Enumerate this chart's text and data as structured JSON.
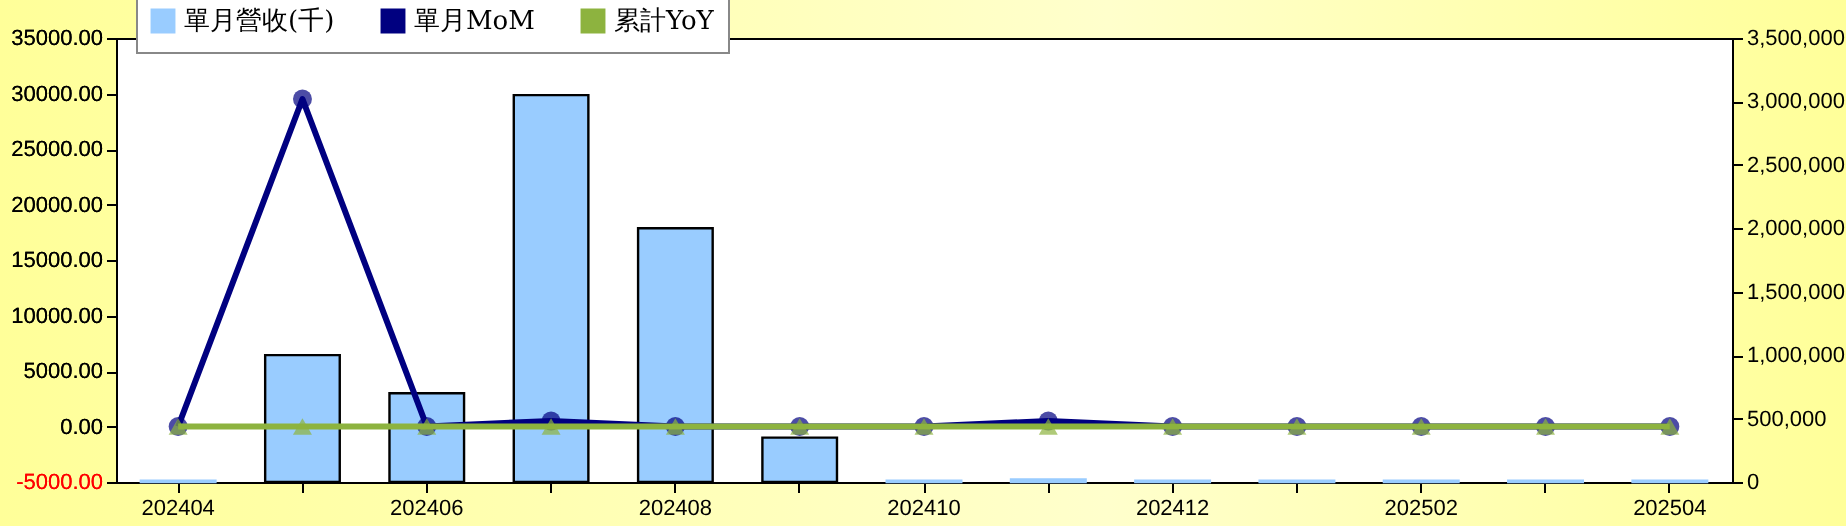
{
  "chart_data": {
    "type": "bar",
    "categories": [
      "202404",
      null,
      "202406",
      null,
      "202408",
      null,
      "202410",
      null,
      "202412",
      null,
      "202502",
      null,
      "202504"
    ],
    "series": [
      {
        "name": "單月營收(千)",
        "axis": "y2",
        "color": "#99ccff",
        "values": [
          10000,
          1000000,
          700000,
          3050000,
          2000000,
          350000,
          10000,
          20000,
          10000,
          10000,
          10000,
          10000,
          10000
        ]
      },
      {
        "name": "單月MoM",
        "type": "line",
        "marker": "circle",
        "color": "#000080",
        "values": [
          0,
          29500,
          0,
          500,
          0,
          0,
          0,
          500,
          0,
          0,
          0,
          0,
          0
        ]
      },
      {
        "name": "累計YoY",
        "type": "line",
        "marker": "triangle",
        "color": "#8db33f",
        "values": [
          0,
          0,
          0,
          0,
          0,
          0,
          0,
          0,
          0,
          0,
          0,
          0,
          0
        ]
      }
    ],
    "ylim": [
      -5000,
      35000
    ],
    "yticks": [
      {
        "value": -5000,
        "label": "-5000.00"
      },
      {
        "value": 0,
        "label": "0.00"
      },
      {
        "value": 5000,
        "label": "5000.00"
      },
      {
        "value": 10000,
        "label": "10000.00"
      },
      {
        "value": 15000,
        "label": "15000.00"
      },
      {
        "value": 20000,
        "label": "20000.00"
      },
      {
        "value": 25000,
        "label": "25000.00"
      },
      {
        "value": 30000,
        "label": "30000.00"
      },
      {
        "value": 35000,
        "label": "35000.00"
      }
    ],
    "y2lim": [
      0,
      3500000
    ],
    "y2ticks": [
      0,
      {
        "value": 500000,
        "label": "500,000"
      },
      {
        "value": 1000000,
        "label": "1,000,000"
      },
      {
        "value": 1500000,
        "label": "1,500,000"
      },
      {
        "value": 2000000,
        "label": "2,000,000"
      },
      {
        "value": 2500000,
        "label": "2,500,000"
      },
      {
        "value": 3000000,
        "label": "3,000,000"
      },
      {
        "value": 3500000,
        "label": "3,500,000"
      }
    ],
    "legend": "top left",
    "grid": false
  }
}
